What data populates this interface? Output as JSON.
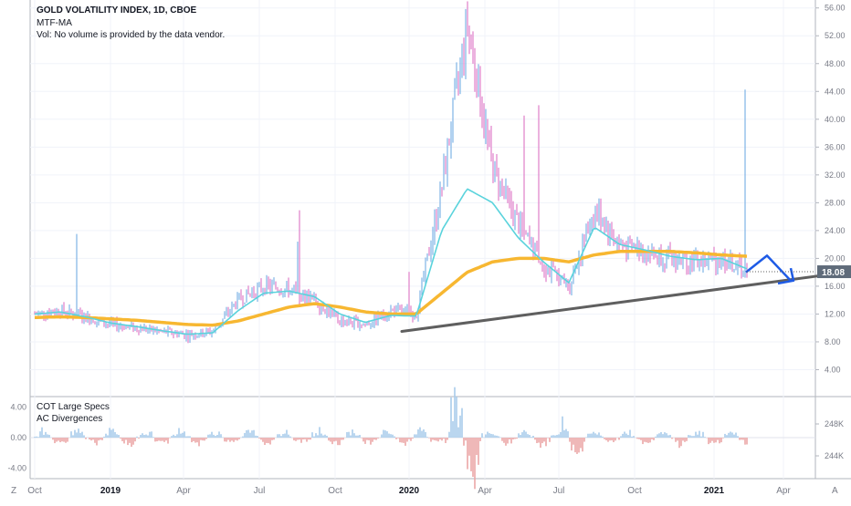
{
  "header": {
    "title": "GOLD VOLATILITY INDEX, 1D, CBOE",
    "indicator": "MTF-MA",
    "volume_note": "Vol: No volume is provided by the data vendor."
  },
  "subpane": {
    "title1": "COT Large Specs",
    "title2": "AC Divergences",
    "left_ticks": [
      "4.00",
      "0.00",
      "-4.00"
    ],
    "right_ticks": [
      "248K",
      "244K"
    ]
  },
  "corner": {
    "left": "Z",
    "right": "A"
  },
  "last_price": {
    "label": "18.08",
    "value": 18.08
  },
  "colors": {
    "bar_up": "#7fb3e6",
    "bar_down": "#e07fc9",
    "fast_ma": "#5ad3dc",
    "slow_ma": "#f7b731",
    "trendline": "#5f5f5f",
    "arrow": "#1e5be6",
    "hist_up": "#a8cbeb",
    "hist_down": "#eba7a7"
  },
  "chart_data": {
    "type": "candlestick",
    "title": "GOLD VOLATILITY INDEX, 1D, CBOE",
    "ylim": [
      0,
      56
    ],
    "y_ticks": [
      "4.00",
      "8.00",
      "12.00",
      "16.00",
      "20.00",
      "24.00",
      "28.00",
      "32.00",
      "36.00",
      "40.00",
      "44.00",
      "48.00",
      "52.00",
      "56.00"
    ],
    "x_ticks": [
      "Oct",
      "2019",
      "Apr",
      "Jul",
      "Oct",
      "2020",
      "Apr",
      "Jul",
      "Oct",
      "2021",
      "Apr"
    ],
    "x_ticks_bold": [
      "2019",
      "2020",
      "2021"
    ],
    "close_path": [
      {
        "x": "Oct 2018",
        "y": 12.0
      },
      {
        "x": "Dec 2018",
        "y": 12.5
      },
      {
        "x": "Jan 2019",
        "y": 11.5
      },
      {
        "x": "Feb 2019",
        "y": 10.5
      },
      {
        "x": "Mar 2019",
        "y": 10.0
      },
      {
        "x": "Apr 2019",
        "y": 9.5
      },
      {
        "x": "May 2019",
        "y": 9.0
      },
      {
        "x": "Jun 2019",
        "y": 9.5
      },
      {
        "x": "Jul 2019",
        "y": 14.0
      },
      {
        "x": "Aug 2019",
        "y": 16.0
      },
      {
        "x": "Sep 2019",
        "y": 15.5
      },
      {
        "x": "Oct 2019",
        "y": 14.0
      },
      {
        "x": "Nov 2019",
        "y": 11.0
      },
      {
        "x": "Dec 2019",
        "y": 10.5
      },
      {
        "x": "Jan 2020",
        "y": 12.5
      },
      {
        "x": "Feb 2020",
        "y": 12.0
      },
      {
        "x": "Mar 2020",
        "y": 30.0
      },
      {
        "x": "Mar 2020 peak",
        "y": 54.0
      },
      {
        "x": "Apr 2020",
        "y": 33.0
      },
      {
        "x": "May 2020",
        "y": 25.0
      },
      {
        "x": "Jun 2020",
        "y": 19.0
      },
      {
        "x": "Jul 2020",
        "y": 16.0
      },
      {
        "x": "Aug 2020",
        "y": 27.0
      },
      {
        "x": "Sep 2020",
        "y": 22.0
      },
      {
        "x": "Oct 2020",
        "y": 21.0
      },
      {
        "x": "Nov 2020",
        "y": 20.0
      },
      {
        "x": "Dec 2020",
        "y": 19.5
      },
      {
        "x": "Jan 2021",
        "y": 20.0
      },
      {
        "x": "Feb 2021",
        "y": 18.08
      }
    ],
    "fast_ma": [
      12.0,
      12.3,
      11.6,
      10.7,
      10.2,
      9.6,
      9.1,
      9.3,
      12.5,
      15.0,
      15.3,
      14.5,
      12.0,
      10.8,
      11.8,
      11.7,
      24.0,
      30.0,
      28.0,
      23.0,
      19.5,
      16.5,
      24.5,
      22.0,
      21.2,
      20.3,
      19.8,
      20.0,
      18.5
    ],
    "slow_ma": [
      11.5,
      11.6,
      11.5,
      11.3,
      11.1,
      10.8,
      10.5,
      10.4,
      11.0,
      12.0,
      13.0,
      13.5,
      13.0,
      12.3,
      12.0,
      12.0,
      15.0,
      18.0,
      19.5,
      20.0,
      20.0,
      19.5,
      20.5,
      21.0,
      21.0,
      21.0,
      20.8,
      20.5,
      20.3
    ],
    "trendline": {
      "start": {
        "x": "Dec 2019",
        "y": 9.5
      },
      "end": {
        "x": "Apr 2021",
        "y": 17.5
      }
    },
    "subpane": {
      "name": "COT Large Specs / AC Divergences",
      "ylim": [
        -5,
        5
      ],
      "ticks": [
        "4.00",
        "0.00",
        "-4.00"
      ]
    }
  }
}
